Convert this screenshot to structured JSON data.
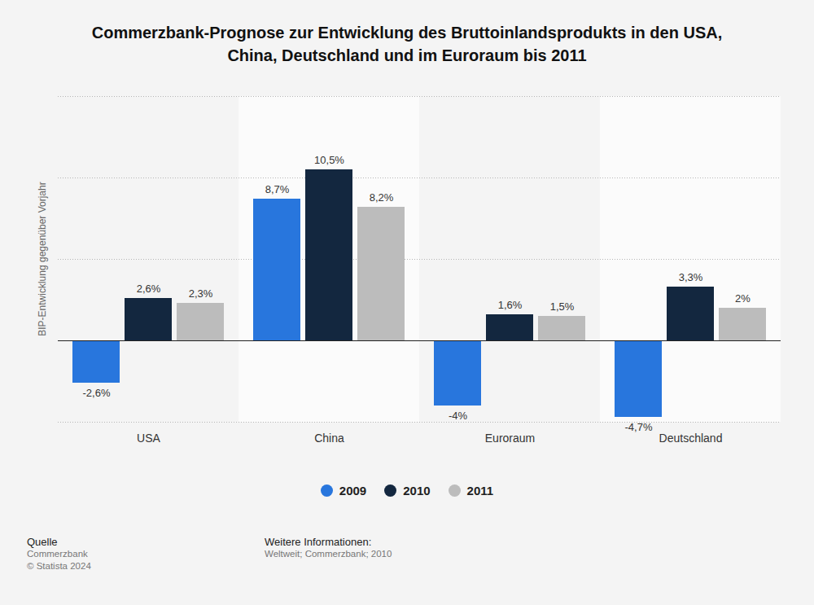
{
  "chart_data": {
    "type": "bar",
    "title": "Commerzbank-Prognose zur Entwicklung des Bruttoinlandsprodukts in den USA, China, Deutschland und im Euroraum bis 2011",
    "y_label": "BIP-Entwicklung gegenüber Vorjahr",
    "categories": [
      "USA",
      "China",
      "Euroraum",
      "Deutschland"
    ],
    "series": [
      {
        "name": "2009",
        "color": "#2876dd",
        "values": [
          -2.6,
          8.7,
          -4,
          -4.7
        ],
        "value_labels": [
          "-2,6%",
          "8,7%",
          "-4%",
          "-4,7%"
        ]
      },
      {
        "name": "2010",
        "color": "#13273f",
        "values": [
          2.6,
          10.5,
          1.6,
          3.3
        ],
        "value_labels": [
          "2,6%",
          "10,5%",
          "1,6%",
          "3,3%"
        ]
      },
      {
        "name": "2011",
        "color": "#bcbcbc",
        "values": [
          2.3,
          8.2,
          1.5,
          2
        ],
        "value_labels": [
          "2,3%",
          "8,2%",
          "1,5%",
          "2%"
        ]
      }
    ],
    "ylim": [
      -5,
      15
    ],
    "yticks": [
      -5,
      0,
      5,
      10,
      15
    ],
    "grid": true,
    "legend": "bottom",
    "data_labels": true,
    "tick_labels": "x"
  },
  "footer": {
    "source_heading": "Quelle",
    "source": "Commerzbank",
    "copyright": "© Statista 2024",
    "info_heading": "Weitere Informationen:",
    "info": "Weltweit; Commerzbank; 2010"
  }
}
